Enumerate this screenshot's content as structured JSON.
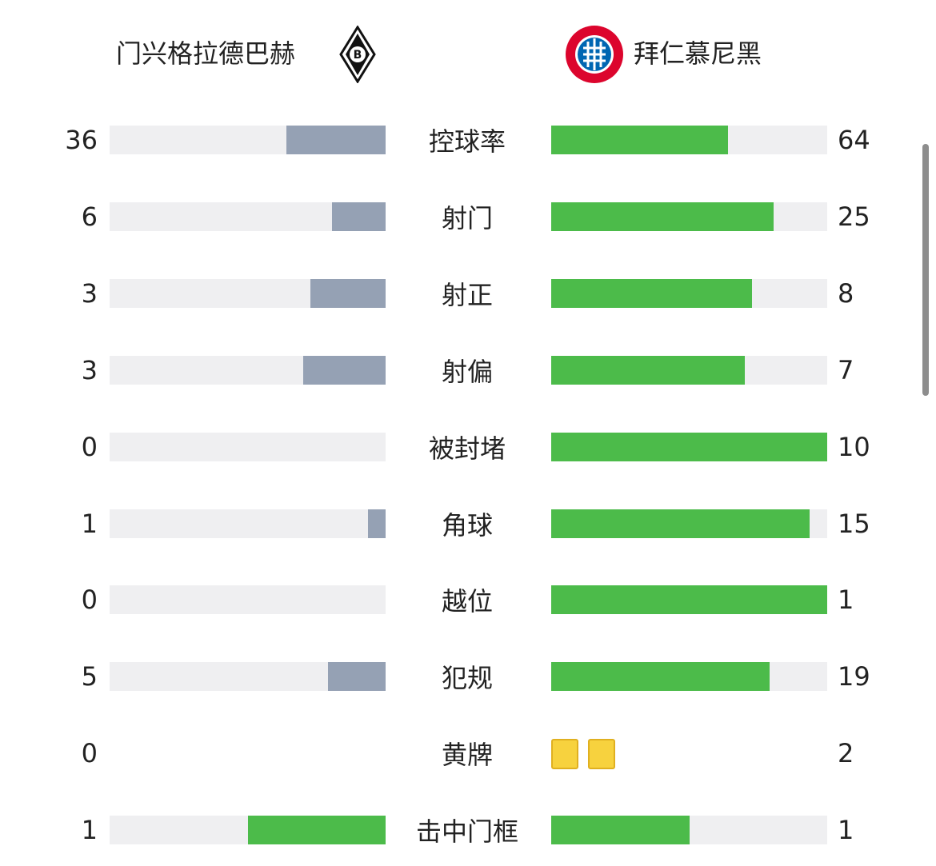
{
  "header": {
    "home_team": "门兴格拉德巴赫",
    "away_team": "拜仁慕尼黑"
  },
  "stats": [
    {
      "label": "控球率",
      "home": 36,
      "away": 64,
      "home_color": "#95a1b4"
    },
    {
      "label": "射门",
      "home": 6,
      "away": 25,
      "home_color": "#95a1b4"
    },
    {
      "label": "射正",
      "home": 3,
      "away": 8,
      "home_color": "#95a1b4"
    },
    {
      "label": "射偏",
      "home": 3,
      "away": 7,
      "home_color": "#95a1b4"
    },
    {
      "label": "被封堵",
      "home": 0,
      "away": 10,
      "home_color": "#95a1b4"
    },
    {
      "label": "角球",
      "home": 1,
      "away": 15,
      "home_color": "#95a1b4"
    },
    {
      "label": "越位",
      "home": 0,
      "away": 1,
      "home_color": "#95a1b4"
    },
    {
      "label": "犯规",
      "home": 5,
      "away": 19,
      "home_color": "#95a1b4"
    },
    {
      "label": "黄牌",
      "home": 0,
      "away": 2,
      "style": "cards"
    },
    {
      "label": "击中门框",
      "home": 1,
      "away": 1,
      "home_color": "#4cbb4a"
    }
  ],
  "away_color": "#4cbb4a",
  "track_color": "#efeff1",
  "card_color": "#f7d23e"
}
